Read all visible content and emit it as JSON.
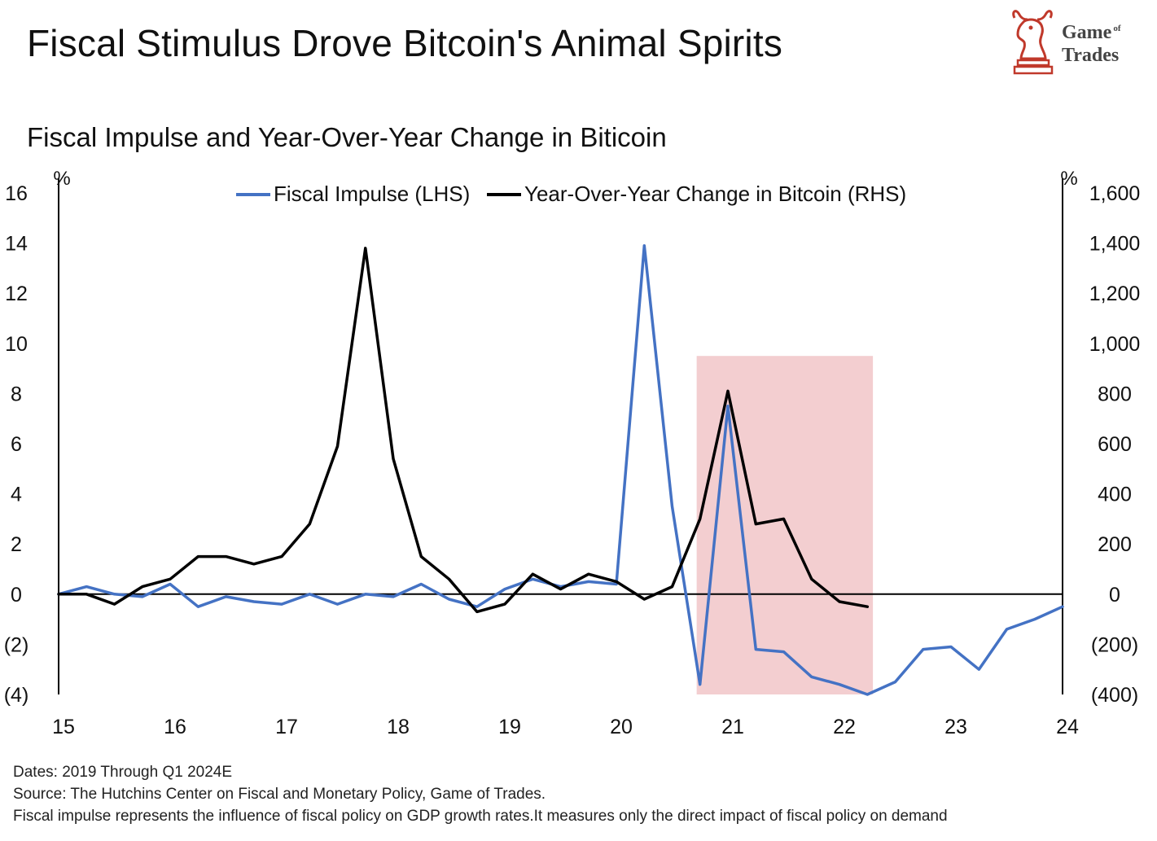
{
  "header": {
    "title": "Fiscal Stimulus Drove Bitcoin's Animal Spirits",
    "subtitle": "Fiscal Impulse and Year-Over-Year Change in Biticoin"
  },
  "logo": {
    "icon": "bull-chess-knight-icon",
    "line1": "Game",
    "line1_small": "of",
    "line2": "Trades",
    "color": "#c0392b"
  },
  "chart_data": {
    "type": "line",
    "left_axis": {
      "unit": "%",
      "ylim": [
        -4,
        16
      ],
      "ticks": [
        16,
        14,
        12,
        10,
        8,
        6,
        4,
        2,
        0,
        -2,
        -4
      ],
      "tick_labels": [
        "16",
        "14",
        "12",
        "10",
        "8",
        "6",
        "4",
        "2",
        "0",
        "(2)",
        "(4)"
      ]
    },
    "right_axis": {
      "unit": "%",
      "ylim": [
        -400,
        1600
      ],
      "ticks": [
        1600,
        1400,
        1200,
        1000,
        800,
        600,
        400,
        200,
        0,
        -200,
        -400
      ],
      "tick_labels": [
        "1,600",
        "1,400",
        "1,200",
        "1,000",
        "800",
        "600",
        "400",
        "200",
        "0",
        "(200)",
        "(400)"
      ]
    },
    "x_axis": {
      "xlim": [
        15,
        24
      ],
      "ticks": [
        15,
        16,
        17,
        18,
        19,
        20,
        21,
        22,
        23,
        24
      ],
      "tick_labels": [
        "15",
        "16",
        "17",
        "18",
        "19",
        "20",
        "21",
        "22",
        "23",
        "24"
      ]
    },
    "legend": {
      "placement": "top-center",
      "entries": [
        "Fiscal Impulse (LHS)",
        "Year-Over-Year Change in Bitcoin (RHS)"
      ]
    },
    "shaded_region": {
      "x_start": 20.72,
      "x_end": 22.3,
      "y_top_lhs": 9.5,
      "y_bottom_lhs": -4,
      "color": "#f2c9cb"
    },
    "series": [
      {
        "name": "Fiscal Impulse (LHS)",
        "axis": "left",
        "color": "#4472c4",
        "points": [
          [
            15.0,
            0.0
          ],
          [
            15.25,
            0.3
          ],
          [
            15.5,
            0.0
          ],
          [
            15.75,
            -0.1
          ],
          [
            16.0,
            0.4
          ],
          [
            16.25,
            -0.5
          ],
          [
            16.5,
            -0.1
          ],
          [
            16.75,
            -0.3
          ],
          [
            17.0,
            -0.4
          ],
          [
            17.25,
            0.0
          ],
          [
            17.5,
            -0.4
          ],
          [
            17.75,
            0.0
          ],
          [
            18.0,
            -0.1
          ],
          [
            18.25,
            0.4
          ],
          [
            18.5,
            -0.2
          ],
          [
            18.75,
            -0.5
          ],
          [
            19.0,
            0.2
          ],
          [
            19.25,
            0.6
          ],
          [
            19.5,
            0.3
          ],
          [
            19.75,
            0.5
          ],
          [
            20.0,
            0.4
          ],
          [
            20.25,
            13.9
          ],
          [
            20.5,
            3.5
          ],
          [
            20.75,
            -3.6
          ],
          [
            21.0,
            7.5
          ],
          [
            21.25,
            -2.2
          ],
          [
            21.5,
            -2.3
          ],
          [
            21.75,
            -3.3
          ],
          [
            22.0,
            -3.6
          ],
          [
            22.25,
            -4.0
          ],
          [
            22.5,
            -3.5
          ],
          [
            22.75,
            -2.2
          ],
          [
            23.0,
            -2.1
          ],
          [
            23.25,
            -3.0
          ],
          [
            23.5,
            -1.4
          ],
          [
            23.75,
            -1.0
          ],
          [
            24.0,
            -0.5
          ]
        ]
      },
      {
        "name": "Year-Over-Year Change in Bitcoin (RHS)",
        "axis": "right",
        "color": "#000000",
        "points": [
          [
            15.0,
            0
          ],
          [
            15.25,
            0
          ],
          [
            15.5,
            -40
          ],
          [
            15.75,
            30
          ],
          [
            16.0,
            60
          ],
          [
            16.25,
            150
          ],
          [
            16.5,
            150
          ],
          [
            16.75,
            120
          ],
          [
            17.0,
            150
          ],
          [
            17.25,
            280
          ],
          [
            17.5,
            590
          ],
          [
            17.75,
            1380
          ],
          [
            18.0,
            540
          ],
          [
            18.25,
            150
          ],
          [
            18.5,
            60
          ],
          [
            18.75,
            -70
          ],
          [
            19.0,
            -40
          ],
          [
            19.25,
            80
          ],
          [
            19.5,
            20
          ],
          [
            19.75,
            80
          ],
          [
            20.0,
            50
          ],
          [
            20.25,
            -20
          ],
          [
            20.5,
            30
          ],
          [
            20.75,
            300
          ],
          [
            21.0,
            810
          ],
          [
            21.25,
            280
          ],
          [
            21.5,
            300
          ],
          [
            21.75,
            60
          ],
          [
            22.0,
            -30
          ],
          [
            22.25,
            -50
          ]
        ]
      }
    ]
  },
  "notes": {
    "dates": "Dates: 2019 Through Q1 2024E",
    "source": "Source: The Hutchins Center on Fiscal and Monetary Policy, Game of Trades.",
    "definition": "Fiscal impulse represents the influence of fiscal policy on GDP growth rates.It measures only the direct impact of fiscal policy on demand"
  }
}
